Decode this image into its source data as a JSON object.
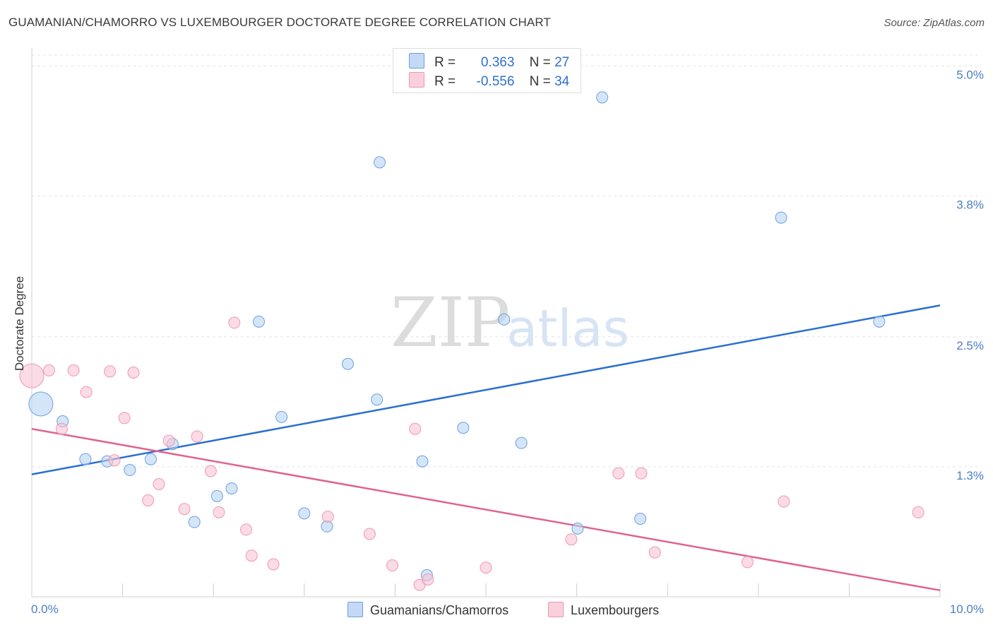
{
  "title": "GUAMANIAN/CHAMORRO VS LUXEMBOURGER DOCTORATE DEGREE CORRELATION CHART",
  "source": "Source: ZipAtlas.com",
  "watermark": {
    "zip": "ZIP",
    "atlas": "atlas"
  },
  "legend": {
    "rows": [
      {
        "r_label": "R =",
        "r_value": "0.363",
        "n_label": "N =",
        "n_value": "27",
        "color": "#a9c8f0"
      },
      {
        "r_label": "R =",
        "r_value": "-0.556",
        "n_label": "N =",
        "n_value": "34",
        "color": "#f5b8cb"
      }
    ]
  },
  "bottom_legend": [
    {
      "label": "Guamanians/Chamorros",
      "color": "#a9c8f0"
    },
    {
      "label": "Luxembourgers",
      "color": "#f5b8cb"
    }
  ],
  "chart_data": {
    "type": "scatter",
    "title": "GUAMANIAN/CHAMORRO VS LUXEMBOURGER DOCTORATE DEGREE CORRELATION CHART",
    "xlabel": "",
    "ylabel": "Doctorate Degree",
    "xlim": [
      0,
      10
    ],
    "ylim": [
      0.1,
      5.1
    ],
    "x_tick_labels": [
      "0.0%",
      "10.0%"
    ],
    "y_ticks": [
      1.3,
      2.5,
      3.8,
      5.0
    ],
    "y_tick_labels": [
      "1.3%",
      "2.5%",
      "3.8%",
      "5.0%"
    ],
    "grid": true,
    "series": [
      {
        "name": "Guamanians/Chamorros",
        "color": "#6aa0e0",
        "fill": "#b9d3f3",
        "line_color": "#2a6fd0",
        "trend": {
          "x": [
            0,
            10
          ],
          "y": [
            1.23,
            2.79
          ]
        },
        "points": [
          {
            "x": 0.1,
            "y": 1.88,
            "big": true
          },
          {
            "x": 0.34,
            "y": 1.72
          },
          {
            "x": 0.59,
            "y": 1.37
          },
          {
            "x": 0.83,
            "y": 1.35
          },
          {
            "x": 1.08,
            "y": 1.27
          },
          {
            "x": 1.31,
            "y": 1.37
          },
          {
            "x": 1.55,
            "y": 1.51
          },
          {
            "x": 1.79,
            "y": 0.79
          },
          {
            "x": 2.04,
            "y": 1.03
          },
          {
            "x": 2.2,
            "y": 1.1
          },
          {
            "x": 2.5,
            "y": 2.64
          },
          {
            "x": 2.75,
            "y": 1.76
          },
          {
            "x": 3.0,
            "y": 0.87
          },
          {
            "x": 3.25,
            "y": 0.75
          },
          {
            "x": 3.48,
            "y": 2.25
          },
          {
            "x": 3.83,
            "y": 4.11
          },
          {
            "x": 3.8,
            "y": 1.92
          },
          {
            "x": 4.3,
            "y": 1.35
          },
          {
            "x": 4.35,
            "y": 0.3
          },
          {
            "x": 4.75,
            "y": 1.66
          },
          {
            "x": 5.2,
            "y": 2.66
          },
          {
            "x": 5.39,
            "y": 1.52
          },
          {
            "x": 6.01,
            "y": 0.73
          },
          {
            "x": 6.28,
            "y": 4.71
          },
          {
            "x": 6.7,
            "y": 0.82
          },
          {
            "x": 8.25,
            "y": 3.6
          },
          {
            "x": 9.33,
            "y": 2.64
          }
        ]
      },
      {
        "name": "Luxembourgers",
        "color": "#ee98b2",
        "fill": "#f8c3d3",
        "line_color": "#e0638e",
        "trend": {
          "x": [
            0,
            10
          ],
          "y": [
            1.65,
            0.16
          ]
        },
        "points": [
          {
            "x": 0.0,
            "y": 2.14,
            "big": true
          },
          {
            "x": 0.19,
            "y": 2.19
          },
          {
            "x": 0.33,
            "y": 1.65
          },
          {
            "x": 0.46,
            "y": 2.19
          },
          {
            "x": 0.6,
            "y": 1.99
          },
          {
            "x": 0.86,
            "y": 2.18
          },
          {
            "x": 0.91,
            "y": 1.36
          },
          {
            "x": 1.02,
            "y": 1.75
          },
          {
            "x": 1.12,
            "y": 2.17
          },
          {
            "x": 1.28,
            "y": 0.99
          },
          {
            "x": 1.4,
            "y": 1.14
          },
          {
            "x": 1.51,
            "y": 1.54
          },
          {
            "x": 1.68,
            "y": 0.91
          },
          {
            "x": 1.82,
            "y": 1.58
          },
          {
            "x": 1.97,
            "y": 1.26
          },
          {
            "x": 2.06,
            "y": 0.88
          },
          {
            "x": 2.23,
            "y": 2.63
          },
          {
            "x": 2.36,
            "y": 0.72
          },
          {
            "x": 2.42,
            "y": 0.48
          },
          {
            "x": 2.66,
            "y": 0.4
          },
          {
            "x": 3.26,
            "y": 0.84
          },
          {
            "x": 3.72,
            "y": 0.68
          },
          {
            "x": 3.97,
            "y": 0.39
          },
          {
            "x": 4.22,
            "y": 1.65
          },
          {
            "x": 4.27,
            "y": 0.21
          },
          {
            "x": 4.36,
            "y": 0.26
          },
          {
            "x": 5.0,
            "y": 0.37
          },
          {
            "x": 5.94,
            "y": 0.63
          },
          {
            "x": 6.46,
            "y": 1.24
          },
          {
            "x": 6.71,
            "y": 1.24
          },
          {
            "x": 6.86,
            "y": 0.51
          },
          {
            "x": 7.88,
            "y": 0.42
          },
          {
            "x": 8.28,
            "y": 0.98
          },
          {
            "x": 9.76,
            "y": 0.88
          }
        ]
      }
    ]
  }
}
